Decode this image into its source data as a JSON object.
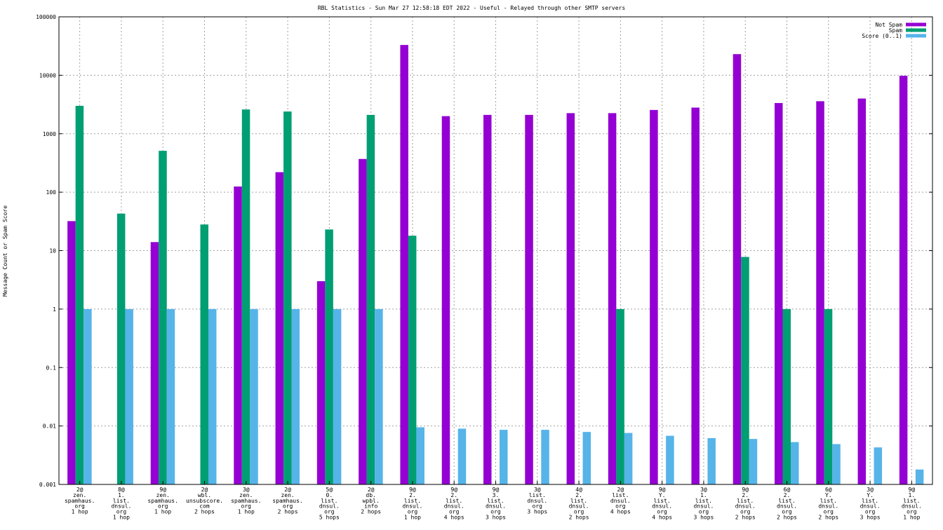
{
  "chart_data": {
    "type": "bar",
    "title": "RBL Statistics - Sun Mar 27 12:58:18 EDT 2022 - Useful - Relayed through other SMTP servers",
    "xlabel": "",
    "ylabel": "Message Count or Spam Score",
    "yscale": "log",
    "ylim": [
      0.001,
      100000
    ],
    "grid": true,
    "legend_position": "top-right",
    "y_ticks": [
      "0.001",
      "0.01",
      "0.1",
      "1",
      "10",
      "100",
      "1000",
      "10000",
      "100000"
    ],
    "categories": [
      [
        "2@",
        "zen.",
        "spamhaus.",
        "org",
        "1 hop"
      ],
      [
        "8@",
        "1.",
        "list.",
        "dnsul.",
        "org",
        "1 hop"
      ],
      [
        "9@",
        "zen.",
        "spamhaus.",
        "org",
        "1 hop"
      ],
      [
        "2@",
        "wbl.",
        "unsubscore.",
        "com",
        "2 hops"
      ],
      [
        "3@",
        "zen.",
        "spamhaus.",
        "org",
        "1 hop"
      ],
      [
        "2@",
        "zen.",
        "spamhaus.",
        "org",
        "2 hops"
      ],
      [
        "5@",
        "0.",
        "list.",
        "dnsul.",
        "org",
        "5 hops"
      ],
      [
        "2@",
        "db.",
        "wpbl.",
        "info",
        "2 hops"
      ],
      [
        "9@",
        "2.",
        "list.",
        "dnsul.",
        "org",
        "1 hop"
      ],
      [
        "9@",
        "2.",
        "list.",
        "dnsul.",
        "org",
        "4 hops"
      ],
      [
        "9@",
        "3.",
        "list.",
        "dnsul.",
        "org",
        "3 hops"
      ],
      [
        "3@",
        "list.",
        "dnsul.",
        "org",
        "3 hops"
      ],
      [
        "4@",
        "2.",
        "list.",
        "dnsul.",
        "org",
        "2 hops"
      ],
      [
        "2@",
        "list.",
        "dnsul.",
        "org",
        "4 hops"
      ],
      [
        "9@",
        "Y.",
        "list.",
        "dnsul.",
        "org",
        "4 hops"
      ],
      [
        "3@",
        "1.",
        "list.",
        "dnsul.",
        "org",
        "3 hops"
      ],
      [
        "9@",
        "2.",
        "list.",
        "dnsul.",
        "org",
        "2 hops"
      ],
      [
        "6@",
        "2.",
        "list.",
        "dnsul.",
        "org",
        "2 hops"
      ],
      [
        "6@",
        "Y.",
        "list.",
        "dnsul.",
        "org",
        "2 hops"
      ],
      [
        "3@",
        "Y.",
        "list.",
        "dnsul.",
        "org",
        "3 hops"
      ],
      [
        "9@",
        "1.",
        "list.",
        "dnsul.",
        "org",
        "1 hop"
      ]
    ],
    "series": [
      {
        "name": "Not Spam",
        "color": "#9400d3",
        "values": [
          32,
          null,
          14,
          null,
          125,
          220,
          3,
          370,
          33000,
          2000,
          2100,
          2100,
          2250,
          2250,
          2550,
          2800,
          23000,
          3350,
          3600,
          4000,
          9800
        ]
      },
      {
        "name": "Spam",
        "color": "#009e73",
        "values": [
          3000,
          43,
          510,
          28,
          2600,
          2400,
          23,
          2100,
          18,
          null,
          null,
          null,
          null,
          1,
          null,
          null,
          7.8,
          1,
          1,
          null,
          null
        ]
      },
      {
        "name": "Score (0..1)",
        "color": "#56b4e9",
        "values": [
          1,
          1,
          1,
          1,
          1,
          1,
          1,
          1,
          0.0095,
          0.009,
          0.0086,
          0.0086,
          0.0079,
          0.0076,
          0.0068,
          0.0062,
          0.006,
          0.0053,
          0.0049,
          0.0043,
          0.0018
        ]
      }
    ]
  }
}
